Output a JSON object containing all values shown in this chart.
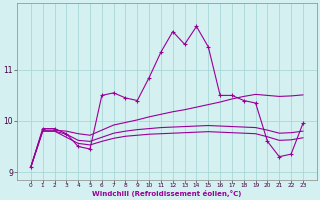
{
  "xlabel": "Windchill (Refroidissement éolien,°C)",
  "background_color": "#d4f0f0",
  "grid_color": "#a8d8d8",
  "line_color": "#990099",
  "x": [
    0,
    1,
    2,
    3,
    4,
    5,
    6,
    7,
    8,
    9,
    10,
    11,
    12,
    13,
    14,
    15,
    16,
    17,
    18,
    19,
    20,
    21,
    22,
    23
  ],
  "y_main": [
    9.1,
    9.85,
    9.85,
    9.75,
    9.5,
    9.45,
    10.5,
    10.55,
    10.45,
    10.4,
    10.85,
    11.35,
    11.75,
    11.5,
    11.85,
    11.45,
    10.5,
    10.5,
    10.4,
    10.35,
    9.6,
    9.3,
    9.35,
    9.95
  ],
  "y_line1": [
    9.1,
    9.82,
    9.82,
    9.8,
    9.75,
    9.72,
    9.82,
    9.92,
    9.97,
    10.02,
    10.08,
    10.13,
    10.18,
    10.22,
    10.27,
    10.32,
    10.37,
    10.43,
    10.48,
    10.52,
    10.5,
    10.48,
    10.49,
    10.51
  ],
  "y_line2": [
    9.1,
    9.8,
    9.8,
    9.74,
    9.62,
    9.6,
    9.68,
    9.76,
    9.8,
    9.83,
    9.85,
    9.87,
    9.88,
    9.89,
    9.9,
    9.91,
    9.9,
    9.89,
    9.88,
    9.87,
    9.82,
    9.76,
    9.77,
    9.8
  ],
  "y_line3": [
    9.1,
    9.8,
    9.8,
    9.68,
    9.56,
    9.53,
    9.6,
    9.66,
    9.7,
    9.72,
    9.74,
    9.75,
    9.76,
    9.77,
    9.78,
    9.79,
    9.78,
    9.77,
    9.76,
    9.75,
    9.69,
    9.62,
    9.63,
    9.67
  ],
  "ylim": [
    8.85,
    12.3
  ],
  "yticks": [
    9,
    10,
    11
  ],
  "xticks": [
    0,
    1,
    2,
    3,
    4,
    5,
    6,
    7,
    8,
    9,
    10,
    11,
    12,
    13,
    14,
    15,
    16,
    17,
    18,
    19,
    20,
    21,
    22,
    23
  ]
}
